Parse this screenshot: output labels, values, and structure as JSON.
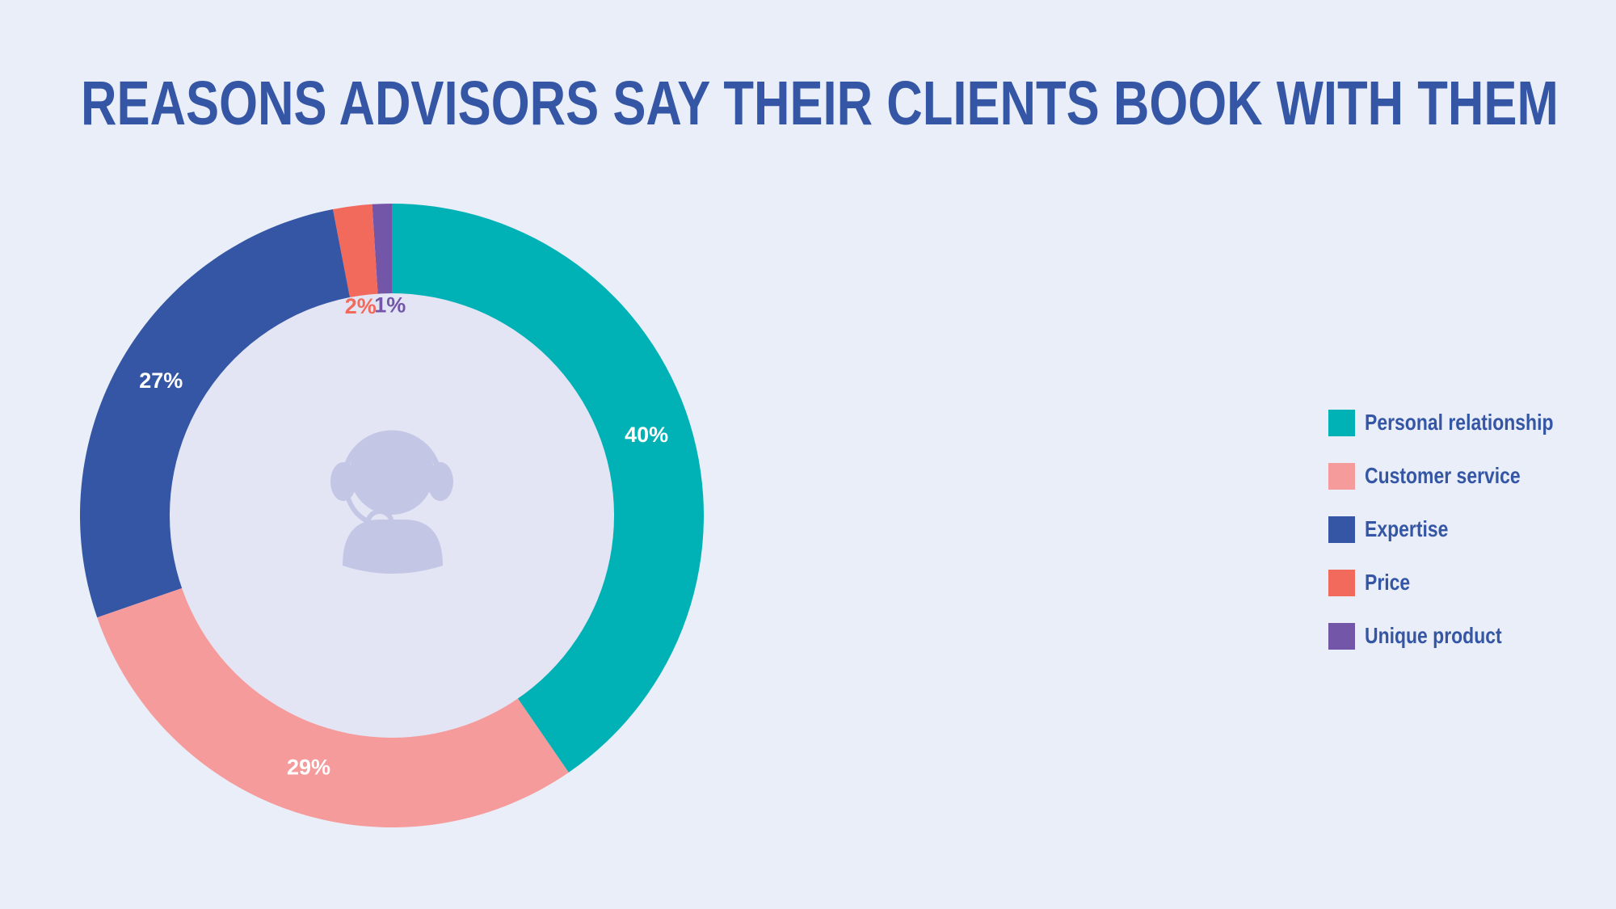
{
  "title": "REASONS ADVISORS SAY THEIR CLIENTS BOOK WITH THEM",
  "colors": {
    "title": "#3456a5",
    "background": "#eaeef8",
    "inner_disc": "#e3e5f4",
    "icon": "#c3c6e4"
  },
  "center_icon": "customer-service-headset-icon",
  "chart_data": {
    "type": "pie",
    "donut": true,
    "legend_placement": "right",
    "slices": [
      {
        "label": "Personal relationship",
        "value": 40,
        "display": "40%",
        "color": "#00b2b6",
        "label_color": "#ffffff"
      },
      {
        "label": "Customer service",
        "value": 29,
        "display": "29%",
        "color": "#f69b9b",
        "label_color": "#ffffff"
      },
      {
        "label": "Expertise",
        "value": 27,
        "display": "27%",
        "color": "#3456a5",
        "label_color": "#ffffff"
      },
      {
        "label": "Price",
        "value": 2,
        "display": "2%",
        "color": "#f26a5b",
        "label_color": "#f26a5b"
      },
      {
        "label": "Unique product",
        "value": 1,
        "display": "1%",
        "color": "#7356a8",
        "label_color": "#7356a8"
      }
    ]
  }
}
